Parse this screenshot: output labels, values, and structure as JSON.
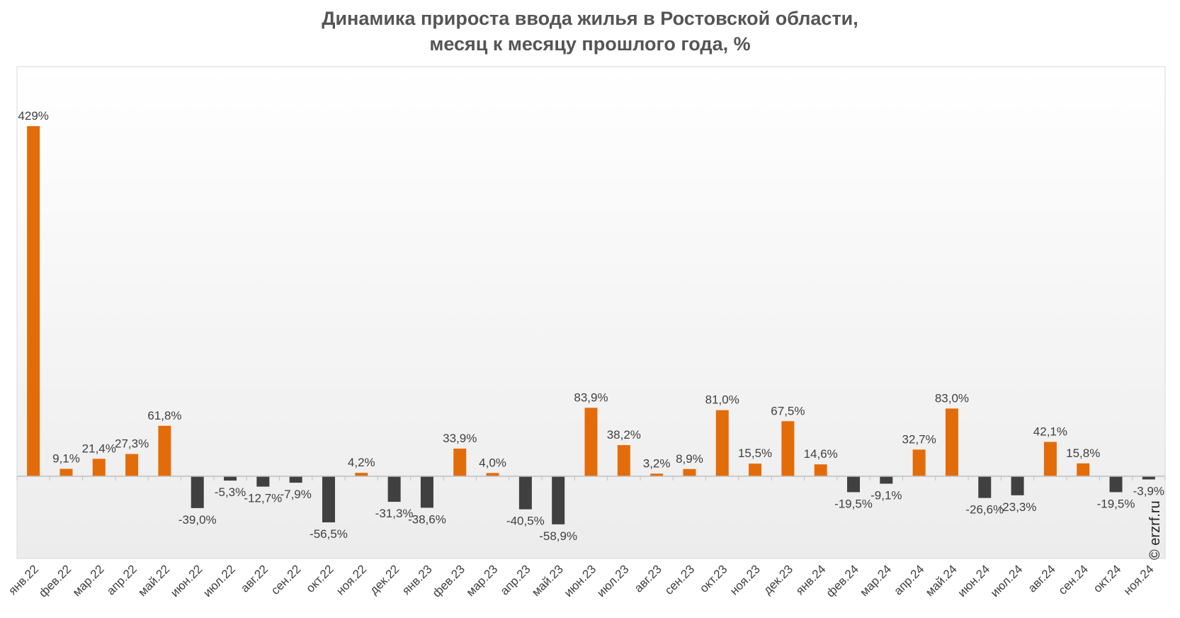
{
  "chart_data": {
    "type": "bar",
    "title_lines": [
      "Динамика прироста ввода жилья в Ростовской области,",
      "месяц к месяцу прошлого года, %"
    ],
    "categories": [
      "янв.22",
      "фев.22",
      "мар.22",
      "апр.22",
      "май.22",
      "июн.22",
      "июл.22",
      "авг.22",
      "сен.22",
      "окт.22",
      "ноя.22",
      "дек.22",
      "янв.23",
      "фев.23",
      "мар.23",
      "апр.23",
      "май.23",
      "июн.23",
      "июл.23",
      "авг.23",
      "сен.23",
      "окт.23",
      "ноя.23",
      "дек.23",
      "янв.24",
      "фев.24",
      "мар.24",
      "апр.24",
      "май.24",
      "июн.24",
      "июл.24",
      "авг.24",
      "сен.24",
      "окт.24",
      "ноя.24"
    ],
    "values": [
      429,
      9.1,
      21.4,
      27.3,
      61.8,
      -39.0,
      -5.3,
      -12.7,
      -7.9,
      -56.5,
      4.2,
      -31.3,
      -38.6,
      33.9,
      4.0,
      -40.5,
      -58.9,
      83.9,
      38.2,
      3.2,
      8.9,
      81.0,
      15.5,
      67.5,
      14.6,
      -19.5,
      -9.1,
      32.7,
      83.0,
      -26.6,
      -23.3,
      42.1,
      15.8,
      -19.5,
      -3.9
    ],
    "labels": [
      "429%",
      "9,1%",
      "21,4%",
      "27,3%",
      "61,8%",
      "-39,0%",
      "-5,3%",
      "-12,7%",
      "-7,9%",
      "-56,5%",
      "4,2%",
      "-31,3%",
      "-38,6%",
      "33,9%",
      "4,0%",
      "-40,5%",
      "-58,9%",
      "83,9%",
      "38,2%",
      "3,2%",
      "8,9%",
      "81,0%",
      "15,5%",
      "67,5%",
      "14,6%",
      "-19,5%",
      "-9,1%",
      "32,7%",
      "83,0%",
      "-26,6%",
      "-23,3%",
      "42,1%",
      "15,8%",
      "-19,5%",
      "-3,9%"
    ],
    "ylim": [
      -100,
      500
    ],
    "grid": false,
    "legend": "none",
    "colors": {
      "positive": "#E36C0A",
      "negative": "#404040",
      "axis": "#bfbfbf",
      "label": "#404040"
    }
  },
  "watermark": "© erzrf.ru"
}
